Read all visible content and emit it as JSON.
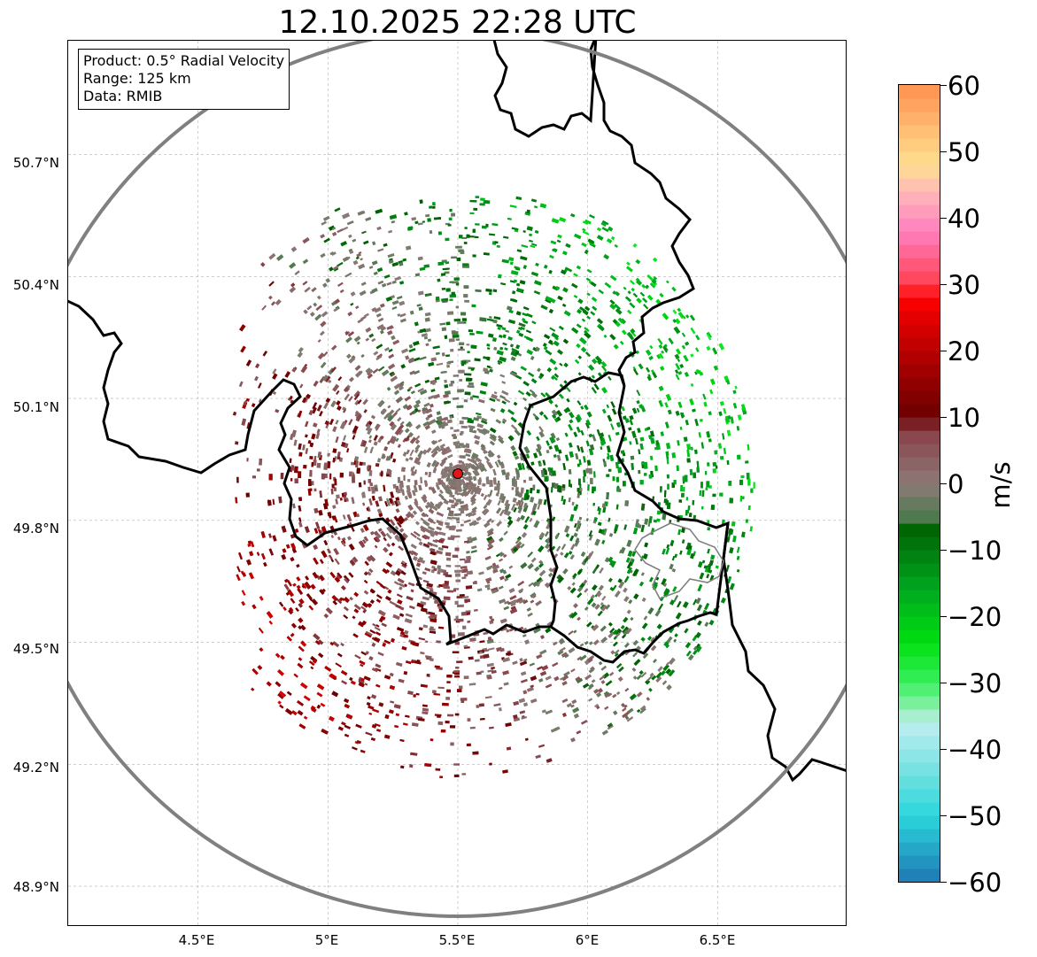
{
  "title": "12.10.2025 22:28 UTC",
  "info": {
    "product": "Product: 0.5° Radial Velocity",
    "range": "Range: 125 km",
    "data": "Data: RMIB"
  },
  "map": {
    "lon_range": [
      4.0,
      7.0
    ],
    "lat_range": [
      48.8,
      50.98
    ],
    "radar_site": {
      "lon": 5.5,
      "lat": 49.915
    },
    "lat_ticks": [
      {
        "value": 50.7,
        "label": "50.7°N"
      },
      {
        "value": 50.4,
        "label": "50.4°N"
      },
      {
        "value": 50.1,
        "label": "50.1°N"
      },
      {
        "value": 49.8,
        "label": "49.8°N"
      },
      {
        "value": 49.5,
        "label": "49.5°N"
      },
      {
        "value": 49.2,
        "label": "49.2°N"
      },
      {
        "value": 48.9,
        "label": "48.9°N"
      }
    ],
    "lon_ticks": [
      {
        "value": 4.5,
        "label": "4.5°E"
      },
      {
        "value": 5.0,
        "label": "5°E"
      },
      {
        "value": 5.5,
        "label": "5.5°E"
      },
      {
        "value": 6.0,
        "label": "6°E"
      },
      {
        "value": 6.5,
        "label": "6.5°E"
      }
    ],
    "colors": {
      "range_ring": "#808080",
      "border": "#000000",
      "minor_border": "#808080",
      "grid": "#b0b0b0",
      "radar_site": "#e0161b"
    }
  },
  "colorbar": {
    "unit": "m/s",
    "min": -60,
    "max": 60,
    "ticks": [
      {
        "value": 60,
        "label": "60"
      },
      {
        "value": 50,
        "label": "50"
      },
      {
        "value": 40,
        "label": "40"
      },
      {
        "value": 30,
        "label": "30"
      },
      {
        "value": 20,
        "label": "20"
      },
      {
        "value": 10,
        "label": "10"
      },
      {
        "value": 0,
        "label": "0"
      },
      {
        "value": -10,
        "label": "−10"
      },
      {
        "value": -20,
        "label": "−20"
      },
      {
        "value": -30,
        "label": "−30"
      },
      {
        "value": -40,
        "label": "−40"
      },
      {
        "value": -50,
        "label": "−50"
      },
      {
        "value": -60,
        "label": "−60"
      }
    ],
    "stops": [
      {
        "value": -60,
        "color": "#1f77b4"
      },
      {
        "value": -50,
        "color": "#2ad6dc"
      },
      {
        "value": -44,
        "color": "#6ee0e0"
      },
      {
        "value": -36,
        "color": "#bfeef0"
      },
      {
        "value": -34,
        "color": "#90f0b0"
      },
      {
        "value": -30,
        "color": "#3af060"
      },
      {
        "value": -24,
        "color": "#00e010"
      },
      {
        "value": -16,
        "color": "#00a820"
      },
      {
        "value": -6,
        "color": "#005e00"
      },
      {
        "value": -5,
        "color": "#4f7a50"
      },
      {
        "value": 0,
        "color": "#8c7a78"
      },
      {
        "value": 8,
        "color": "#8a4048"
      },
      {
        "value": 10,
        "color": "#6a0000"
      },
      {
        "value": 20,
        "color": "#b80000"
      },
      {
        "value": 28,
        "color": "#ff0000"
      },
      {
        "value": 30,
        "color": "#ff4050"
      },
      {
        "value": 38,
        "color": "#ff80c0"
      },
      {
        "value": 44,
        "color": "#ffb8b8"
      },
      {
        "value": 48,
        "color": "#ffe090"
      },
      {
        "value": 60,
        "color": "#ff9050"
      }
    ]
  }
}
